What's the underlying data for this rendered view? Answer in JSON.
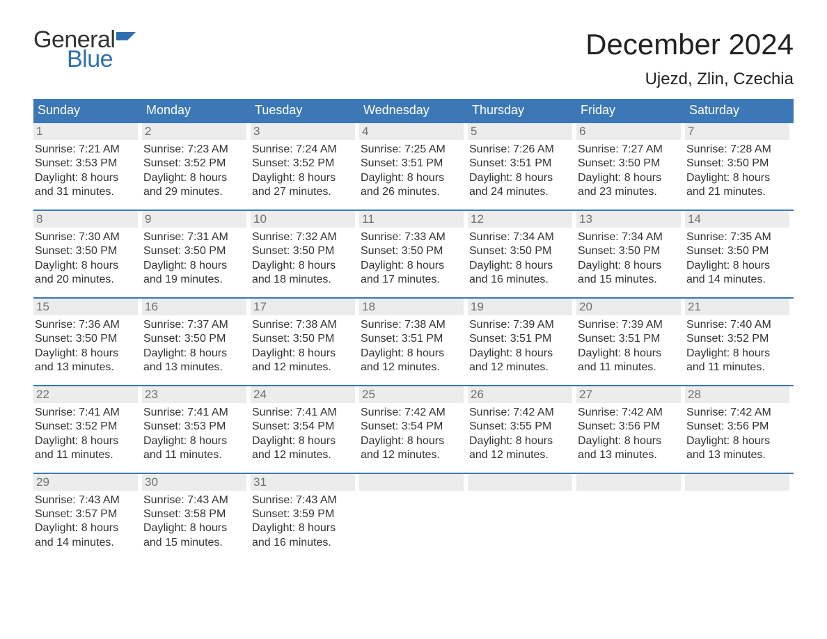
{
  "logo": {
    "general": "General",
    "blue": "Blue",
    "flag_color": "#2f6fb0"
  },
  "title": "December 2024",
  "location": "Ujezd, Zlin, Czechia",
  "colors": {
    "header_bg": "#3b78b5",
    "header_text": "#ffffff",
    "daynum_bg": "#ececec",
    "daynum_text": "#6f6f6f",
    "body_text": "#333333",
    "week_border": "#3b78b5"
  },
  "typography": {
    "title_fontsize": 42,
    "location_fontsize": 24,
    "dow_fontsize": 18,
    "daynum_fontsize": 17,
    "body_fontsize": 16
  },
  "days_of_week": [
    "Sunday",
    "Monday",
    "Tuesday",
    "Wednesday",
    "Thursday",
    "Friday",
    "Saturday"
  ],
  "weeks": [
    [
      {
        "n": "1",
        "sunrise": "7:21 AM",
        "sunset": "3:53 PM",
        "dl1": "Daylight: 8 hours",
        "dl2": "and 31 minutes."
      },
      {
        "n": "2",
        "sunrise": "7:23 AM",
        "sunset": "3:52 PM",
        "dl1": "Daylight: 8 hours",
        "dl2": "and 29 minutes."
      },
      {
        "n": "3",
        "sunrise": "7:24 AM",
        "sunset": "3:52 PM",
        "dl1": "Daylight: 8 hours",
        "dl2": "and 27 minutes."
      },
      {
        "n": "4",
        "sunrise": "7:25 AM",
        "sunset": "3:51 PM",
        "dl1": "Daylight: 8 hours",
        "dl2": "and 26 minutes."
      },
      {
        "n": "5",
        "sunrise": "7:26 AM",
        "sunset": "3:51 PM",
        "dl1": "Daylight: 8 hours",
        "dl2": "and 24 minutes."
      },
      {
        "n": "6",
        "sunrise": "7:27 AM",
        "sunset": "3:50 PM",
        "dl1": "Daylight: 8 hours",
        "dl2": "and 23 minutes."
      },
      {
        "n": "7",
        "sunrise": "7:28 AM",
        "sunset": "3:50 PM",
        "dl1": "Daylight: 8 hours",
        "dl2": "and 21 minutes."
      }
    ],
    [
      {
        "n": "8",
        "sunrise": "7:30 AM",
        "sunset": "3:50 PM",
        "dl1": "Daylight: 8 hours",
        "dl2": "and 20 minutes."
      },
      {
        "n": "9",
        "sunrise": "7:31 AM",
        "sunset": "3:50 PM",
        "dl1": "Daylight: 8 hours",
        "dl2": "and 19 minutes."
      },
      {
        "n": "10",
        "sunrise": "7:32 AM",
        "sunset": "3:50 PM",
        "dl1": "Daylight: 8 hours",
        "dl2": "and 18 minutes."
      },
      {
        "n": "11",
        "sunrise": "7:33 AM",
        "sunset": "3:50 PM",
        "dl1": "Daylight: 8 hours",
        "dl2": "and 17 minutes."
      },
      {
        "n": "12",
        "sunrise": "7:34 AM",
        "sunset": "3:50 PM",
        "dl1": "Daylight: 8 hours",
        "dl2": "and 16 minutes."
      },
      {
        "n": "13",
        "sunrise": "7:34 AM",
        "sunset": "3:50 PM",
        "dl1": "Daylight: 8 hours",
        "dl2": "and 15 minutes."
      },
      {
        "n": "14",
        "sunrise": "7:35 AM",
        "sunset": "3:50 PM",
        "dl1": "Daylight: 8 hours",
        "dl2": "and 14 minutes."
      }
    ],
    [
      {
        "n": "15",
        "sunrise": "7:36 AM",
        "sunset": "3:50 PM",
        "dl1": "Daylight: 8 hours",
        "dl2": "and 13 minutes."
      },
      {
        "n": "16",
        "sunrise": "7:37 AM",
        "sunset": "3:50 PM",
        "dl1": "Daylight: 8 hours",
        "dl2": "and 13 minutes."
      },
      {
        "n": "17",
        "sunrise": "7:38 AM",
        "sunset": "3:50 PM",
        "dl1": "Daylight: 8 hours",
        "dl2": "and 12 minutes."
      },
      {
        "n": "18",
        "sunrise": "7:38 AM",
        "sunset": "3:51 PM",
        "dl1": "Daylight: 8 hours",
        "dl2": "and 12 minutes."
      },
      {
        "n": "19",
        "sunrise": "7:39 AM",
        "sunset": "3:51 PM",
        "dl1": "Daylight: 8 hours",
        "dl2": "and 12 minutes."
      },
      {
        "n": "20",
        "sunrise": "7:39 AM",
        "sunset": "3:51 PM",
        "dl1": "Daylight: 8 hours",
        "dl2": "and 11 minutes."
      },
      {
        "n": "21",
        "sunrise": "7:40 AM",
        "sunset": "3:52 PM",
        "dl1": "Daylight: 8 hours",
        "dl2": "and 11 minutes."
      }
    ],
    [
      {
        "n": "22",
        "sunrise": "7:41 AM",
        "sunset": "3:52 PM",
        "dl1": "Daylight: 8 hours",
        "dl2": "and 11 minutes."
      },
      {
        "n": "23",
        "sunrise": "7:41 AM",
        "sunset": "3:53 PM",
        "dl1": "Daylight: 8 hours",
        "dl2": "and 11 minutes."
      },
      {
        "n": "24",
        "sunrise": "7:41 AM",
        "sunset": "3:54 PM",
        "dl1": "Daylight: 8 hours",
        "dl2": "and 12 minutes."
      },
      {
        "n": "25",
        "sunrise": "7:42 AM",
        "sunset": "3:54 PM",
        "dl1": "Daylight: 8 hours",
        "dl2": "and 12 minutes."
      },
      {
        "n": "26",
        "sunrise": "7:42 AM",
        "sunset": "3:55 PM",
        "dl1": "Daylight: 8 hours",
        "dl2": "and 12 minutes."
      },
      {
        "n": "27",
        "sunrise": "7:42 AM",
        "sunset": "3:56 PM",
        "dl1": "Daylight: 8 hours",
        "dl2": "and 13 minutes."
      },
      {
        "n": "28",
        "sunrise": "7:42 AM",
        "sunset": "3:56 PM",
        "dl1": "Daylight: 8 hours",
        "dl2": "and 13 minutes."
      }
    ],
    [
      {
        "n": "29",
        "sunrise": "7:43 AM",
        "sunset": "3:57 PM",
        "dl1": "Daylight: 8 hours",
        "dl2": "and 14 minutes."
      },
      {
        "n": "30",
        "sunrise": "7:43 AM",
        "sunset": "3:58 PM",
        "dl1": "Daylight: 8 hours",
        "dl2": "and 15 minutes."
      },
      {
        "n": "31",
        "sunrise": "7:43 AM",
        "sunset": "3:59 PM",
        "dl1": "Daylight: 8 hours",
        "dl2": "and 16 minutes."
      },
      {
        "empty": true
      },
      {
        "empty": true
      },
      {
        "empty": true
      },
      {
        "empty": true
      }
    ]
  ],
  "labels": {
    "sunrise_prefix": "Sunrise: ",
    "sunset_prefix": "Sunset: "
  }
}
